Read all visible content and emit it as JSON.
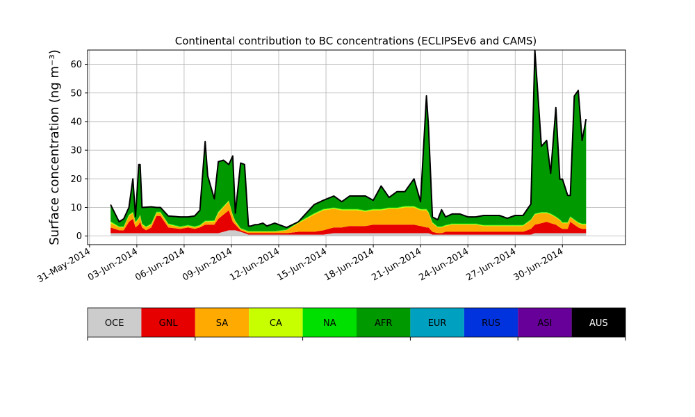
{
  "chart_data": {
    "type": "area",
    "title": "Continental contribution to BC concentrations (ECLIPSEv6 and CAMS)",
    "ylabel": "Surface concentration (ng m⁻³)",
    "xlabel": "",
    "ylim": [
      -3,
      65
    ],
    "yticks": [
      0,
      10,
      20,
      30,
      40,
      50,
      60
    ],
    "xlim": [
      "2014-05-30T21:00",
      "2014-07-04T00:00"
    ],
    "xticks": [
      {
        "date": "2014-05-31",
        "label": "31-May-2014"
      },
      {
        "date": "2014-06-03",
        "label": "03-Jun-2014"
      },
      {
        "date": "2014-06-06",
        "label": "06-Jun-2014"
      },
      {
        "date": "2014-06-09",
        "label": "09-Jun-2014"
      },
      {
        "date": "2014-06-12",
        "label": "12-Jun-2014"
      },
      {
        "date": "2014-06-15",
        "label": "15-Jun-2014"
      },
      {
        "date": "2014-06-18",
        "label": "18-Jun-2014"
      },
      {
        "date": "2014-06-21",
        "label": "21-Jun-2014"
      },
      {
        "date": "2014-06-24",
        "label": "24-Jun-2014"
      },
      {
        "date": "2014-06-27",
        "label": "27-Jun-2014"
      },
      {
        "date": "2014-06-30",
        "label": "30-Jun-2014"
      }
    ],
    "grid": true,
    "stacked": true,
    "x": [
      "2014-06-01T08:00",
      "2014-06-01T21:00",
      "2014-06-02T04:00",
      "2014-06-02T12:00",
      "2014-06-02T18:00",
      "2014-06-02T22:00",
      "2014-06-03T03:00",
      "2014-06-03T05:00",
      "2014-06-03T08:00",
      "2014-06-03T14:00",
      "2014-06-03T22:00",
      "2014-06-04T06:00",
      "2014-06-04T12:00",
      "2014-06-05T00:00",
      "2014-06-05T18:00",
      "2014-06-06T06:00",
      "2014-06-06T16:00",
      "2014-06-07T00:00",
      "2014-06-07T08:00",
      "2014-06-07T12:00",
      "2014-06-07T22:00",
      "2014-06-08T04:00",
      "2014-06-08T12:00",
      "2014-06-08T20:00",
      "2014-06-09T02:00",
      "2014-06-09T06:00",
      "2014-06-09T14:00",
      "2014-06-09T20:00",
      "2014-06-10T02:00",
      "2014-06-10T06:00",
      "2014-06-10T12:00",
      "2014-06-10T16:00",
      "2014-06-11T00:00",
      "2014-06-11T06:00",
      "2014-06-11T18:00",
      "2014-06-12T12:00",
      "2014-06-13T06:00",
      "2014-06-14T06:00",
      "2014-06-14T20:00",
      "2014-06-15T12:00",
      "2014-06-16T00:00",
      "2014-06-16T12:00",
      "2014-06-17T00:00",
      "2014-06-17T12:00",
      "2014-06-18T00:00",
      "2014-06-18T12:00",
      "2014-06-19T00:00",
      "2014-06-19T12:00",
      "2014-06-20T00:00",
      "2014-06-20T14:00",
      "2014-06-21T00:00",
      "2014-06-21T09:00",
      "2014-06-21T12:00",
      "2014-06-21T18:00",
      "2014-06-22T02:00",
      "2014-06-22T08:00",
      "2014-06-22T14:00",
      "2014-06-23T00:00",
      "2014-06-23T12:00",
      "2014-06-24T00:00",
      "2014-06-24T12:00",
      "2014-06-25T00:00",
      "2014-06-25T12:00",
      "2014-06-26T00:00",
      "2014-06-26T12:00",
      "2014-06-27T00:00",
      "2014-06-27T12:00",
      "2014-06-28T00:00",
      "2014-06-28T06:00",
      "2014-06-28T16:00",
      "2014-06-29T00:00",
      "2014-06-29T06:00",
      "2014-06-29T14:00",
      "2014-06-29T20:00",
      "2014-06-30T00:00",
      "2014-06-30T08:00",
      "2014-06-30T12:00",
      "2014-06-30T18:00",
      "2014-07-01T00:00",
      "2014-07-01T06:00",
      "2014-07-01T12:00"
    ],
    "series": [
      {
        "name": "OCE",
        "color": "#cccccc",
        "values": [
          1,
          1,
          1,
          1,
          1,
          1,
          1,
          1,
          1,
          1,
          1,
          1,
          1,
          1,
          1,
          1,
          1,
          1,
          1,
          1,
          1,
          1,
          1.5,
          2,
          2,
          2,
          1.5,
          1,
          0.5,
          0.5,
          0.5,
          0.5,
          0.5,
          0.5,
          0.5,
          0.5,
          0.5,
          0.5,
          0.5,
          1,
          1,
          1,
          1,
          1,
          1,
          1,
          1,
          1,
          1,
          1,
          1,
          1,
          1,
          0.5,
          0.5,
          0.5,
          0.5,
          0.5,
          0.5,
          0.5,
          0.5,
          0.5,
          0.5,
          0.5,
          0.5,
          0.5,
          0.5,
          0.5,
          1,
          1,
          1,
          1,
          1,
          1,
          1,
          1,
          1,
          1,
          1,
          1,
          1
        ]
      },
      {
        "name": "GNL",
        "color": "#e60000",
        "values": [
          2,
          1,
          1,
          4,
          5,
          2,
          3,
          4,
          2,
          1,
          2,
          6,
          6,
          2,
          1.5,
          2,
          1.5,
          2,
          3,
          3,
          3,
          5,
          6,
          7,
          3,
          2,
          0.5,
          0.5,
          0.5,
          0.5,
          0.5,
          0.5,
          0.5,
          0.5,
          0.5,
          0.5,
          1,
          1,
          1.5,
          2,
          2,
          2.5,
          2.5,
          2.5,
          3,
          3,
          3,
          3,
          3,
          3,
          2.5,
          2,
          2,
          1,
          0.5,
          0.5,
          1,
          1,
          1,
          1,
          1,
          1,
          1,
          1,
          1,
          1,
          1,
          2,
          3,
          3.5,
          4,
          3.5,
          3,
          2,
          1.5,
          1.5,
          4,
          3,
          2,
          1.5,
          1.5
        ]
      },
      {
        "name": "SA",
        "color": "#ffaa00",
        "values": [
          1.5,
          1,
          1,
          2,
          2,
          1.5,
          2,
          2,
          1,
          1,
          1,
          1,
          1,
          1,
          0.5,
          0.5,
          0.5,
          0.5,
          1,
          1,
          1,
          2,
          2.5,
          3,
          2,
          1,
          0.5,
          0.5,
          0.5,
          0.5,
          0.5,
          0.5,
          0.5,
          0.5,
          0.5,
          1,
          3,
          6,
          7,
          6.5,
          6,
          5.5,
          5.5,
          5,
          5,
          5,
          5.5,
          5.5,
          6,
          6,
          5.5,
          6,
          5,
          3,
          2,
          2,
          2,
          2.5,
          2.5,
          2.5,
          2.5,
          2,
          2,
          2,
          2,
          2,
          2,
          3,
          3.5,
          3.5,
          3,
          3,
          2.5,
          2.5,
          2,
          2,
          1.5,
          1.5,
          1.5,
          1.5,
          1.5
        ]
      },
      {
        "name": "CA",
        "color": "#c8ff00",
        "values": [
          0.5,
          0.2,
          0.2,
          0.3,
          0.3,
          0.3,
          0.3,
          0.3,
          0.2,
          0.2,
          0.2,
          0.3,
          0.3,
          0.2,
          0.2,
          0.2,
          0.2,
          0.2,
          0.2,
          0.2,
          0.3,
          0.3,
          0.3,
          0.3,
          0.3,
          0.2,
          0.1,
          0.1,
          0.1,
          0.1,
          0.1,
          0.1,
          0.1,
          0.1,
          0.1,
          0.1,
          0.2,
          0.3,
          0.3,
          0.3,
          0.3,
          0.3,
          0.3,
          0.3,
          0.3,
          0.3,
          0.3,
          0.3,
          0.3,
          0.3,
          0.3,
          0.3,
          0.3,
          0.2,
          0.2,
          0.2,
          0.2,
          0.2,
          0.2,
          0.2,
          0.2,
          0.2,
          0.2,
          0.2,
          0.2,
          0.2,
          0.2,
          0.2,
          0.2,
          0.2,
          0.2,
          0.2,
          0.2,
          0.2,
          0.2,
          0.2,
          0.2,
          0.2,
          0.2,
          0.2,
          0.2
        ]
      },
      {
        "name": "NA",
        "color": "#00e000",
        "values": [
          0.2,
          0.2,
          0.2,
          0.2,
          0.2,
          0.2,
          0.2,
          0.2,
          0.2,
          0.2,
          0.2,
          0.2,
          0.2,
          0.2,
          0.2,
          0.2,
          0.2,
          0.2,
          0.2,
          0.2,
          0.2,
          0.2,
          0.2,
          0.2,
          0.2,
          0.2,
          0.2,
          0.2,
          0.2,
          0.2,
          0.2,
          0.2,
          0.2,
          0.2,
          0.2,
          0.2,
          0.2,
          0.2,
          0.2,
          0.2,
          0.2,
          0.2,
          0.2,
          0.2,
          0.2,
          0.2,
          0.2,
          0.2,
          0.2,
          0.2,
          0.2,
          0.2,
          0.2,
          0.2,
          0.2,
          0.2,
          0.2,
          0.2,
          0.2,
          0.2,
          0.2,
          0.2,
          0.2,
          0.2,
          0.2,
          0.2,
          0.2,
          0.2,
          0.2,
          0.2,
          0.2,
          0.2,
          0.2,
          0.2,
          0.2,
          0.2,
          0.2,
          0.2,
          0.2,
          0.2,
          0.2
        ]
      },
      {
        "name": "AFR",
        "color": "#009900",
        "values": [
          5.8,
          1.6,
          2.6,
          2.5,
          11.5,
          1.8,
          18.5,
          17.5,
          5.6,
          6.7,
          5.8,
          1.5,
          1.5,
          2.6,
          3.3,
          2.8,
          3.6,
          5.1,
          27.6,
          15.6,
          7.5,
          17.5,
          16,
          12.5,
          20.5,
          2.6,
          22.7,
          22.7,
          1.7,
          1.7,
          2.2,
          2.2,
          2.7,
          1.7,
          2.7,
          0.7,
          0.1,
          3.0,
          3.0,
          4.0,
          2.5,
          4.5,
          4.5,
          5.0,
          3.0,
          8.0,
          3.5,
          5.5,
          5.0,
          9.5,
          2.5,
          39.5,
          30,
          1.8,
          2.3,
          5.8,
          2.8,
          3.3,
          3.3,
          2.3,
          2.3,
          3.3,
          3.3,
          3.3,
          2.3,
          3.3,
          3.3,
          5.3,
          57,
          23,
          25,
          14,
          38,
          14,
          15,
          9.3,
          7.3,
          43,
          46,
          29,
          36.5
        ]
      },
      {
        "name": "EUR",
        "color": "#00a0c0",
        "values": [
          0,
          0,
          0,
          0,
          0,
          0,
          0,
          0,
          0,
          0,
          0,
          0,
          0,
          0,
          0,
          0,
          0,
          0,
          0,
          0,
          0,
          0,
          0,
          0,
          0,
          0,
          0,
          0,
          0,
          0,
          0,
          0,
          0,
          0,
          0,
          0,
          0,
          0,
          0,
          0,
          0,
          0,
          0,
          0,
          0,
          0,
          0,
          0,
          0,
          0,
          0,
          0,
          0,
          0,
          0,
          0,
          0,
          0,
          0,
          0,
          0,
          0,
          0,
          0,
          0,
          0,
          0,
          0,
          0,
          0,
          0,
          0,
          0,
          0,
          0,
          0,
          0,
          0,
          0,
          0,
          0
        ]
      },
      {
        "name": "RUS",
        "color": "#0033dd",
        "values": [
          0,
          0,
          0,
          0,
          0,
          0,
          0,
          0,
          0,
          0,
          0,
          0,
          0,
          0,
          0,
          0,
          0,
          0,
          0,
          0,
          0,
          0,
          0,
          0,
          0,
          0,
          0,
          0,
          0,
          0,
          0,
          0,
          0,
          0,
          0,
          0,
          0,
          0,
          0,
          0,
          0,
          0,
          0,
          0,
          0,
          0,
          0,
          0,
          0,
          0,
          0,
          0,
          0,
          0,
          0,
          0,
          0,
          0,
          0,
          0,
          0,
          0,
          0,
          0,
          0,
          0,
          0,
          0,
          0,
          0,
          0,
          0,
          0,
          0,
          0,
          0,
          0,
          0,
          0,
          0,
          0
        ]
      },
      {
        "name": "ASI",
        "color": "#660099",
        "values": [
          0,
          0,
          0,
          0,
          0,
          0,
          0,
          0,
          0,
          0,
          0,
          0,
          0,
          0,
          0,
          0,
          0,
          0,
          0,
          0,
          0,
          0,
          0,
          0,
          0,
          0,
          0,
          0,
          0,
          0,
          0,
          0,
          0,
          0,
          0,
          0,
          0,
          0,
          0,
          0,
          0,
          0,
          0,
          0,
          0,
          0,
          0,
          0,
          0,
          0,
          0,
          0,
          0,
          0,
          0,
          0,
          0,
          0,
          0,
          0,
          0,
          0,
          0,
          0,
          0,
          0,
          0,
          0,
          0,
          0,
          0,
          0,
          0,
          0,
          0,
          0,
          0,
          0,
          0,
          0,
          0
        ]
      },
      {
        "name": "AUS",
        "color": "#000000",
        "values": [
          0,
          0,
          0,
          0,
          0,
          0,
          0,
          0,
          0,
          0,
          0,
          0,
          0,
          0,
          0,
          0,
          0,
          0,
          0,
          0,
          0,
          0,
          0,
          0,
          0,
          0,
          0,
          0,
          0,
          0,
          0,
          0,
          0,
          0,
          0,
          0,
          0,
          0,
          0,
          0,
          0,
          0,
          0,
          0,
          0,
          0,
          0,
          0,
          0,
          0,
          0,
          0,
          0,
          0,
          0,
          0,
          0,
          0,
          0,
          0,
          0,
          0,
          0,
          0,
          0,
          0,
          0,
          0,
          0,
          0,
          0,
          0,
          0,
          0,
          0,
          0,
          0,
          0,
          0,
          0,
          0
        ]
      }
    ],
    "legend": {
      "placement": "bottom",
      "entries": [
        {
          "name": "OCE",
          "color": "#cccccc",
          "text_color": "#000000"
        },
        {
          "name": "GNL",
          "color": "#e60000",
          "text_color": "#000000"
        },
        {
          "name": "SA",
          "color": "#ffaa00",
          "text_color": "#000000"
        },
        {
          "name": "CA",
          "color": "#c8ff00",
          "text_color": "#000000"
        },
        {
          "name": "NA",
          "color": "#00e000",
          "text_color": "#000000"
        },
        {
          "name": "AFR",
          "color": "#009900",
          "text_color": "#000000"
        },
        {
          "name": "EUR",
          "color": "#00a0c0",
          "text_color": "#000000"
        },
        {
          "name": "RUS",
          "color": "#0033dd",
          "text_color": "#000000"
        },
        {
          "name": "ASI",
          "color": "#660099",
          "text_color": "#000000"
        },
        {
          "name": "AUS",
          "color": "#000000",
          "text_color": "#ffffff"
        }
      ]
    }
  }
}
